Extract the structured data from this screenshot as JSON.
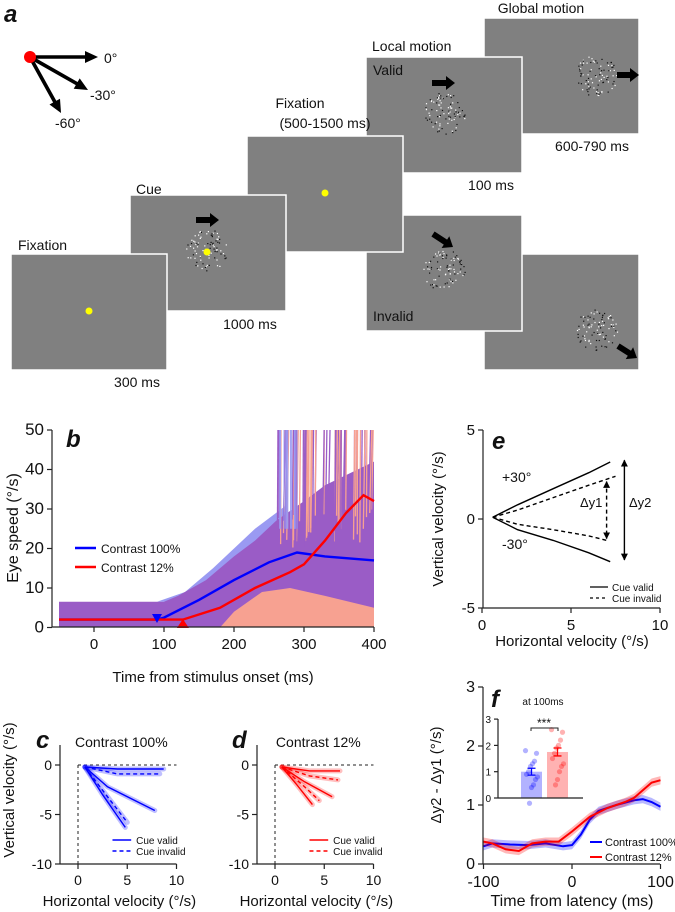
{
  "panel_labels": {
    "a": "a",
    "b": "b",
    "c": "c",
    "d": "d",
    "e": "e",
    "f": "f"
  },
  "panel_a": {
    "direction_key": {
      "labels": [
        "0°",
        "-30°",
        "-60°"
      ]
    },
    "screens": [
      {
        "title": "Fixation",
        "duration": "300 ms"
      },
      {
        "title": "Cue",
        "duration": "1000 ms"
      },
      {
        "title": "Fixation",
        "subtitle": "(500-1500 ms)"
      },
      {
        "title": "Local motion",
        "inner_label": "Valid",
        "duration": "100 ms"
      },
      {
        "inner_label": "Invalid"
      },
      {
        "title": "Global motion",
        "duration": "600-790 ms"
      }
    ],
    "colors": {
      "screen": "#808080",
      "fixation_dot": "#ffff00",
      "origin_dot": "#ff0000"
    }
  },
  "chart_data": [
    {
      "panel": "b",
      "type": "line",
      "xlabel": "Time from stimulus onset (ms)",
      "ylabel": "Eye speed (°/s)",
      "xlim": [
        -50,
        400
      ],
      "ylim": [
        0,
        50
      ],
      "xticks": [
        0,
        100,
        200,
        300,
        400
      ],
      "yticks": [
        0,
        10,
        20,
        30,
        40,
        50
      ],
      "grid": false,
      "legend_position": "left",
      "individual_trial_colors": [
        "#9a9af2",
        "#f7a191",
        "#9a5cc6"
      ],
      "series": [
        {
          "name": "Contrast 100%",
          "color": "#0000ff",
          "latency_ms": 90,
          "x": [
            -50,
            90,
            100,
            150,
            200,
            250,
            290,
            330,
            400
          ],
          "y": [
            2,
            2,
            2.5,
            7,
            12,
            16.5,
            19,
            18,
            17
          ]
        },
        {
          "name": "Contrast 12%",
          "color": "#ff0000",
          "latency_ms": 127,
          "x": [
            -50,
            127,
            180,
            230,
            280,
            300,
            330,
            360,
            385,
            400
          ],
          "y": [
            2,
            2,
            5,
            10,
            14,
            16,
            22,
            29,
            33.5,
            32
          ]
        }
      ]
    },
    {
      "panel": "c",
      "type": "line",
      "title": "Contrast 100%",
      "xlabel": "Horizontal velocity (°/s)",
      "ylabel": "Vertical velocity (°/s)",
      "xlim": [
        -1.8,
        10
      ],
      "ylim": [
        -10,
        2
      ],
      "xticks": [
        0,
        5,
        10
      ],
      "yticks": [
        0,
        -5,
        -10
      ],
      "color": "#0000ff",
      "legend": [
        "Cue valid",
        "Cue invalid"
      ],
      "legend_position": "bottom-right",
      "series": [
        {
          "style": "solid",
          "x": [
            0.7,
            4,
            8.7
          ],
          "y": [
            -0.2,
            -0.4,
            -0.4
          ]
        },
        {
          "style": "dashed",
          "x": [
            0.7,
            4,
            8.3
          ],
          "y": [
            -0.2,
            -0.9,
            -0.9
          ]
        },
        {
          "style": "solid",
          "x": [
            0.7,
            3,
            7.8
          ],
          "y": [
            -0.2,
            -2.2,
            -4.6
          ]
        },
        {
          "style": "dashed",
          "x": [
            0.7,
            3,
            5.0
          ],
          "y": [
            -0.2,
            -3.2,
            -5.8
          ]
        },
        {
          "style": "solid",
          "x": [
            0.7,
            2.5,
            4.8
          ],
          "y": [
            -0.2,
            -3.0,
            -6.3
          ]
        }
      ]
    },
    {
      "panel": "d",
      "type": "line",
      "title": "Contrast 12%",
      "xlabel": "Horizontal velocity (°/s)",
      "xlim": [
        -1.8,
        10
      ],
      "ylim": [
        -10,
        2
      ],
      "xticks": [
        0,
        5,
        10
      ],
      "yticks": [
        0,
        -5,
        -10
      ],
      "color": "#ff0000",
      "legend": [
        "Cue valid",
        "Cue invalid"
      ],
      "legend_position": "bottom-right",
      "series": [
        {
          "style": "solid",
          "x": [
            0.7,
            3.5,
            6.6
          ],
          "y": [
            -0.2,
            -0.6,
            -0.6
          ]
        },
        {
          "style": "dashed",
          "x": [
            0.7,
            3.5,
            6.4
          ],
          "y": [
            -0.2,
            -1.1,
            -1.5
          ]
        },
        {
          "style": "solid",
          "x": [
            0.7,
            3,
            5.8
          ],
          "y": [
            -0.2,
            -1.7,
            -3.2
          ]
        },
        {
          "style": "dashed",
          "x": [
            0.7,
            3,
            4.5
          ],
          "y": [
            -0.2,
            -2.2,
            -3.6
          ]
        },
        {
          "style": "solid",
          "x": [
            0.7,
            2.3,
            3.8
          ],
          "y": [
            -0.2,
            -2.1,
            -4.0
          ]
        }
      ]
    },
    {
      "panel": "e",
      "type": "line",
      "xlabel": "Horizontal velocity (°/s)",
      "ylabel": "Vertical velocity (°/s)",
      "xlim": [
        0,
        10
      ],
      "ylim": [
        -5,
        5
      ],
      "xticks": [
        0,
        5,
        10
      ],
      "yticks": [
        5,
        0,
        -5
      ],
      "legend": [
        "Cue valid",
        "Cue invalid"
      ],
      "legend_position": "bottom-right",
      "annotations": {
        "plus": "+30°",
        "minus": "-30°",
        "dy1": "Δy1",
        "dy2": "Δy2"
      },
      "series": [
        {
          "style": "solid",
          "x": [
            0.6,
            2,
            4,
            6,
            7.2
          ],
          "y": [
            0.1,
            0.8,
            1.7,
            2.6,
            3.2
          ]
        },
        {
          "style": "dashed",
          "x": [
            0.6,
            2,
            4,
            6,
            7.5
          ],
          "y": [
            0.1,
            0.5,
            1.2,
            1.9,
            2.4
          ]
        },
        {
          "style": "dashed",
          "x": [
            0.6,
            2,
            4,
            6,
            7.0
          ],
          "y": [
            0.1,
            -0.3,
            -0.6,
            -0.95,
            -1.2
          ]
        },
        {
          "style": "solid",
          "x": [
            0.6,
            2,
            4,
            6,
            7.2
          ],
          "y": [
            0.1,
            -0.6,
            -1.2,
            -1.9,
            -2.4
          ]
        }
      ],
      "arrows": {
        "dy1": {
          "x": 7.0,
          "y": [
            2.1,
            -1.1
          ]
        },
        "dy2": {
          "x": 8.0,
          "y": [
            3.3,
            -2.3
          ]
        }
      }
    },
    {
      "panel": "f",
      "type": "line",
      "xlabel": "Time from latency (ms)",
      "ylabel": "Δy2 - Δy1 (°/s)",
      "xlim": [
        -100,
        100
      ],
      "ylim": [
        0,
        3
      ],
      "xticks": [
        -100,
        0,
        100
      ],
      "yticks": [
        0,
        1,
        2,
        3
      ],
      "legend_position": "bottom-right",
      "series": [
        {
          "name": "Contrast 100%",
          "color": "#0000ff",
          "sem": 0.07,
          "x": [
            -100,
            -90,
            -70,
            -50,
            -30,
            -10,
            0,
            10,
            20,
            30,
            50,
            70,
            80,
            90,
            100
          ],
          "y": [
            0.3,
            0.35,
            0.33,
            0.32,
            0.35,
            0.3,
            0.32,
            0.5,
            0.75,
            0.9,
            1.0,
            1.08,
            1.1,
            1.05,
            0.97
          ]
        },
        {
          "name": "Contrast 12%",
          "color": "#ff0000",
          "sem": 0.07,
          "x": [
            -100,
            -90,
            -75,
            -60,
            -45,
            -30,
            -15,
            0,
            20,
            40,
            60,
            70,
            80,
            90,
            100
          ],
          "y": [
            0.38,
            0.35,
            0.25,
            0.22,
            0.35,
            0.38,
            0.38,
            0.55,
            0.8,
            0.95,
            1.05,
            1.12,
            1.25,
            1.38,
            1.42
          ]
        }
      ]
    },
    {
      "panel": "f-inset",
      "type": "bar",
      "title": "at 100ms",
      "ylim": [
        0,
        3
      ],
      "yticks": [
        0,
        1,
        2,
        3
      ],
      "significance": "***",
      "bars": [
        {
          "value": 1.0,
          "sem": 0.13,
          "color": "#0000ff",
          "points": [
            1.8,
            1.7,
            1.4,
            1.3,
            1.2,
            1.0,
            0.9,
            0.8,
            0.7,
            0.5,
            0.4,
            -0.2
          ]
        },
        {
          "value": 1.75,
          "sem": 0.15,
          "color": "#ff0000",
          "points": [
            2.6,
            2.5,
            2.2,
            2.0,
            1.9,
            1.7,
            1.5,
            1.3,
            1.2,
            1.0,
            0.7,
            0.5
          ]
        }
      ]
    }
  ]
}
